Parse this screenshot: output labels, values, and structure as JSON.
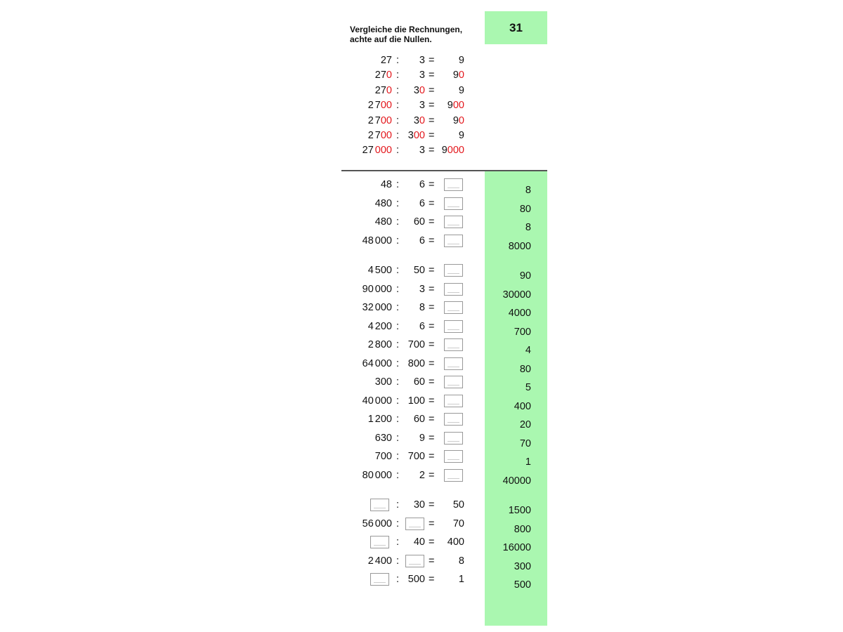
{
  "page_number": "31",
  "instruction": [
    "Vergleiche die Rechnungen,",
    "achte auf die Nullen."
  ],
  "colors": {
    "green": "#aaf7b0",
    "highlight_red": "#e3161b"
  },
  "operator": ":",
  "equals": "=",
  "examples": [
    {
      "dividend": [
        "27",
        ""
      ],
      "divisor": [
        "3",
        ""
      ],
      "result": [
        "9",
        ""
      ]
    },
    {
      "dividend": [
        "27",
        "0"
      ],
      "divisor": [
        "3",
        ""
      ],
      "result": [
        "9",
        "0"
      ]
    },
    {
      "dividend": [
        "27",
        "0"
      ],
      "divisor": [
        "3",
        "0"
      ],
      "result": [
        "9",
        ""
      ]
    },
    {
      "dividend": [
        "2 7",
        "00"
      ],
      "divisor": [
        "3",
        ""
      ],
      "result": [
        "9",
        "00"
      ]
    },
    {
      "dividend": [
        "2 7",
        "00"
      ],
      "divisor": [
        "3",
        "0"
      ],
      "result": [
        "9",
        "0"
      ]
    },
    {
      "dividend": [
        "2 7",
        "00"
      ],
      "divisor": [
        "3",
        "00"
      ],
      "result": [
        "9",
        ""
      ]
    },
    {
      "dividend": [
        "27",
        " 000"
      ],
      "divisor": [
        "3",
        ""
      ],
      "result": [
        "9",
        "000"
      ]
    }
  ],
  "exercise_groups": [
    [
      {
        "dividend": "48",
        "divisor": "6",
        "result": null
      },
      {
        "dividend": "480",
        "divisor": "6",
        "result": null
      },
      {
        "dividend": "480",
        "divisor": "60",
        "result": null
      },
      {
        "dividend": "48 000",
        "divisor": "6",
        "result": null
      }
    ],
    [
      {
        "dividend": "4 500",
        "divisor": "50",
        "result": null
      },
      {
        "dividend": "90 000",
        "divisor": "3",
        "result": null
      },
      {
        "dividend": "32 000",
        "divisor": "8",
        "result": null
      },
      {
        "dividend": "4 200",
        "divisor": "6",
        "result": null
      },
      {
        "dividend": "2 800",
        "divisor": "700",
        "result": null
      },
      {
        "dividend": "64 000",
        "divisor": "800",
        "result": null
      },
      {
        "dividend": "300",
        "divisor": "60",
        "result": null
      },
      {
        "dividend": "40 000",
        "divisor": "100",
        "result": null
      },
      {
        "dividend": "1 200",
        "divisor": "60",
        "result": null
      },
      {
        "dividend": "630",
        "divisor": "9",
        "result": null
      },
      {
        "dividend": "700",
        "divisor": "700",
        "result": null
      },
      {
        "dividend": "80 000",
        "divisor": "2",
        "result": null
      }
    ],
    [
      {
        "dividend": null,
        "divisor": "30",
        "result": "50"
      },
      {
        "dividend": "56 000",
        "divisor": null,
        "result": "70"
      },
      {
        "dividend": null,
        "divisor": "40",
        "result": "400"
      },
      {
        "dividend": "2 400",
        "divisor": null,
        "result": "8"
      },
      {
        "dividend": null,
        "divisor": "500",
        "result": "1"
      }
    ]
  ],
  "answer_groups": [
    [
      "8",
      "80",
      "8",
      "8000"
    ],
    [
      "90",
      "30000",
      "4000",
      "700",
      "4",
      "80",
      "5",
      "400",
      "20",
      "70",
      "1",
      "40000"
    ],
    [
      "1500",
      "800",
      "16000",
      "300",
      "500"
    ]
  ]
}
